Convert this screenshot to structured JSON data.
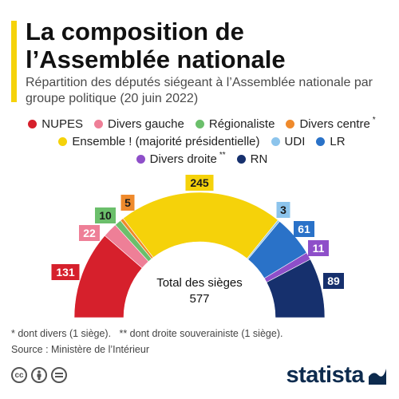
{
  "title": "La composition de l’Assemblée nationale",
  "subtitle": "Répartition des députés siégeant à l’Assemblée nationale par groupe politique (20 juin 2022)",
  "legend": [
    [
      {
        "name": "NUPES",
        "color": "#d6202c",
        "mark": ""
      },
      {
        "name": "Divers gauche",
        "color": "#ee7f97",
        "mark": ""
      },
      {
        "name": "Régionaliste",
        "color": "#6bbf6b",
        "mark": ""
      },
      {
        "name": "Divers centre",
        "color": "#ef8a2c",
        "mark": "*"
      }
    ],
    [
      {
        "name": "Ensemble ! (majorité présidentielle)",
        "color": "#f5d20a",
        "mark": ""
      },
      {
        "name": "UDI",
        "color": "#8cc4ec",
        "mark": ""
      },
      {
        "name": "LR",
        "color": "#2a72c8",
        "mark": ""
      }
    ],
    [
      {
        "name": "Divers droite",
        "color": "#8e4fc9",
        "mark": "**"
      },
      {
        "name": "RN",
        "color": "#16306d",
        "mark": ""
      }
    ]
  ],
  "chart_data": {
    "type": "pie",
    "subtype": "semicircle-parliament",
    "title": "La composition de l’Assemblée nationale",
    "categories": [
      "NUPES",
      "Divers gauche",
      "Régionaliste",
      "Divers centre",
      "Ensemble ! (majorité présidentielle)",
      "UDI",
      "LR",
      "Divers droite",
      "RN"
    ],
    "values": [
      131,
      22,
      10,
      5,
      245,
      3,
      61,
      11,
      89
    ],
    "colors": [
      "#d6202c",
      "#ee7f97",
      "#6bbf6b",
      "#ef8a2c",
      "#f5d20a",
      "#8cc4ec",
      "#2a72c8",
      "#8e4fc9",
      "#16306d"
    ],
    "total_label": "Total des sièges",
    "total": 577
  },
  "footnote": "* dont divers (1 siège).   ** dont droite souverainiste (1 siège).",
  "source": "Source : Ministère de l’Intérieur",
  "license_icons": [
    "cc-icon",
    "by-person-icon",
    "nd-equals-icon"
  ],
  "brand": "statista"
}
